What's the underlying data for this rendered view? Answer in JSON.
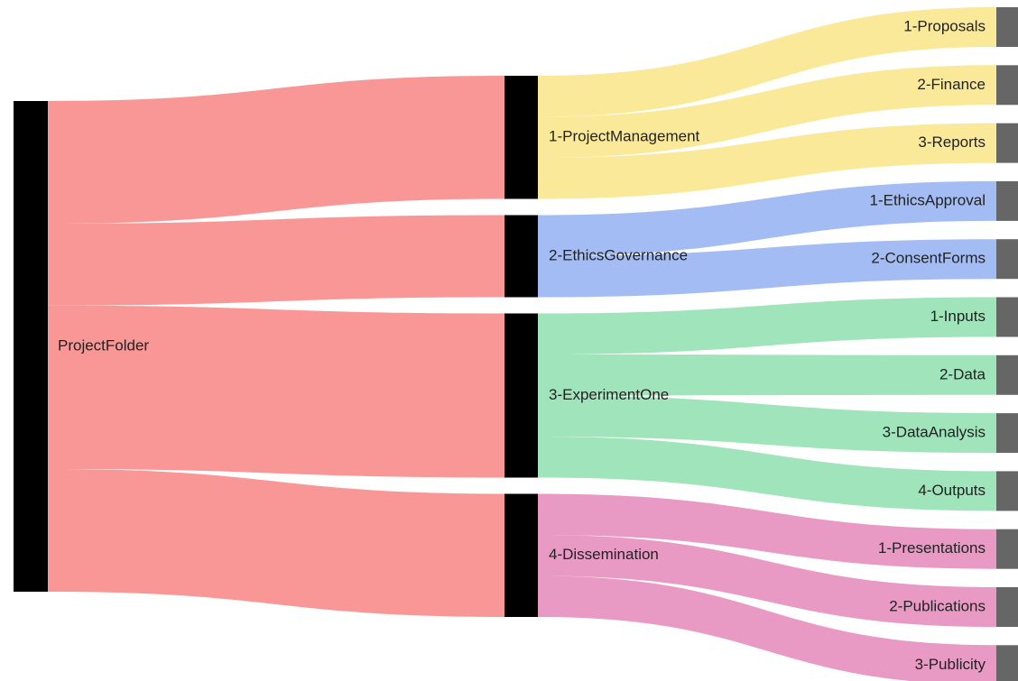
{
  "root": {
    "label": "ProjectFolder"
  },
  "groups": [
    {
      "label": "1-ProjectManagement",
      "color": "#fbe99a",
      "children": [
        "1-Proposals",
        "2-Finance",
        "3-Reports"
      ]
    },
    {
      "label": "2-EthicsGovernance",
      "color": "#a3bdf4",
      "children": [
        "1-EthicsApproval",
        "2-ConsentForms"
      ]
    },
    {
      "label": "3-ExperimentOne",
      "color": "#a0e4bb",
      "children": [
        "1-Inputs",
        "2-Data",
        "3-DataAnalysis",
        "4-Outputs"
      ]
    },
    {
      "label": "4-Dissemination",
      "color": "#e89ac4",
      "children": [
        "1-Presentations",
        "2-Publications",
        "3-Publicity"
      ]
    }
  ],
  "colors": {
    "root_flow": "#f99797",
    "root_node": "#000000",
    "group_node": "#000000",
    "leaf_node": "#666666"
  }
}
